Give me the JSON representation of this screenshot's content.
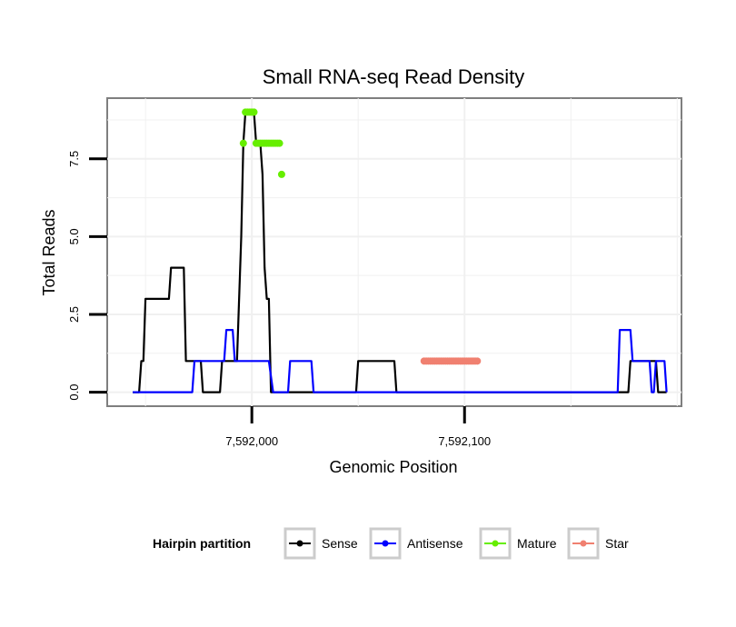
{
  "chart_data": {
    "type": "line",
    "title": "Small RNA-seq Read Density",
    "xlabel": "Genomic Position",
    "ylabel": "Total Reads",
    "xlim": [
      7591932,
      7592202
    ],
    "ylim": [
      -0.45,
      9.45
    ],
    "x_ticks": [
      {
        "value": 7592000,
        "label": "7,592,000"
      },
      {
        "value": 7592100,
        "label": "7,592,100"
      }
    ],
    "y_ticks": [
      {
        "value": 0,
        "label": "0.0"
      },
      {
        "value": 2.5,
        "label": "2.5"
      },
      {
        "value": 5,
        "label": "5.0"
      },
      {
        "value": 7.5,
        "label": "7.5"
      }
    ],
    "grid": true,
    "series": [
      {
        "name": "Sense",
        "color": "#000000",
        "style": "line",
        "points": [
          [
            7591944,
            0
          ],
          [
            7591947,
            0
          ],
          [
            7591948,
            1
          ],
          [
            7591949,
            1
          ],
          [
            7591950,
            3
          ],
          [
            7591961,
            3
          ],
          [
            7591962,
            4
          ],
          [
            7591968,
            4
          ],
          [
            7591969,
            1
          ],
          [
            7591976,
            1
          ],
          [
            7591977,
            0
          ],
          [
            7591985,
            0
          ],
          [
            7591986,
            1
          ],
          [
            7591993,
            1
          ],
          [
            7591995,
            5
          ],
          [
            7591996,
            8
          ],
          [
            7591997,
            9
          ],
          [
            7592001,
            9
          ],
          [
            7592002,
            8
          ],
          [
            7592004,
            8
          ],
          [
            7592005,
            7
          ],
          [
            7592006,
            4
          ],
          [
            7592007,
            3
          ],
          [
            7592008,
            3
          ],
          [
            7592009,
            0
          ],
          [
            7592049,
            0
          ],
          [
            7592050,
            1
          ],
          [
            7592067,
            1
          ],
          [
            7592068,
            0
          ],
          [
            7592177,
            0
          ],
          [
            7592178,
            1
          ],
          [
            7592190,
            1
          ],
          [
            7592191,
            0
          ],
          [
            7592195,
            0
          ]
        ]
      },
      {
        "name": "Antisense",
        "color": "#0000ff",
        "style": "line",
        "points": [
          [
            7591944,
            0
          ],
          [
            7591972,
            0
          ],
          [
            7591973,
            1
          ],
          [
            7591987,
            1
          ],
          [
            7591988,
            2
          ],
          [
            7591991,
            2
          ],
          [
            7591992,
            1
          ],
          [
            7591996,
            1
          ],
          [
            7592000,
            1
          ],
          [
            7592001,
            1
          ],
          [
            7592008,
            1
          ],
          [
            7592010,
            0
          ],
          [
            7592017,
            0
          ],
          [
            7592018,
            1
          ],
          [
            7592028,
            1
          ],
          [
            7592029,
            0
          ],
          [
            7592172,
            0
          ],
          [
            7592173,
            2
          ],
          [
            7592178,
            2
          ],
          [
            7592179,
            1
          ],
          [
            7592187,
            1
          ],
          [
            7592188,
            0
          ],
          [
            7592189,
            0
          ],
          [
            7592190,
            1
          ],
          [
            7592194,
            1
          ],
          [
            7592195,
            0
          ]
        ]
      },
      {
        "name": "Mature",
        "color": "#66ee00",
        "style": "points",
        "points": [
          [
            7591996,
            8
          ],
          [
            7591997,
            9
          ],
          [
            7591998,
            9
          ],
          [
            7591999,
            9
          ],
          [
            7592000,
            9
          ],
          [
            7592001,
            9
          ],
          [
            7592002,
            8
          ],
          [
            7592003,
            8
          ],
          [
            7592004,
            8
          ],
          [
            7592005,
            8
          ],
          [
            7592006,
            8
          ],
          [
            7592007,
            8
          ],
          [
            7592008,
            8
          ],
          [
            7592009,
            8
          ],
          [
            7592010,
            8
          ],
          [
            7592011,
            8
          ],
          [
            7592012,
            8
          ],
          [
            7592013,
            8
          ],
          [
            7592014,
            7
          ]
        ]
      },
      {
        "name": "Star",
        "color": "#f08070",
        "style": "points",
        "points": [
          [
            7592081,
            1
          ],
          [
            7592082,
            1
          ],
          [
            7592083,
            1
          ],
          [
            7592084,
            1
          ],
          [
            7592085,
            1
          ],
          [
            7592086,
            1
          ],
          [
            7592087,
            1
          ],
          [
            7592088,
            1
          ],
          [
            7592089,
            1
          ],
          [
            7592090,
            1
          ],
          [
            7592091,
            1
          ],
          [
            7592092,
            1
          ],
          [
            7592093,
            1
          ],
          [
            7592094,
            1
          ],
          [
            7592095,
            1
          ],
          [
            7592096,
            1
          ],
          [
            7592097,
            1
          ],
          [
            7592098,
            1
          ],
          [
            7592099,
            1
          ],
          [
            7592100,
            1
          ],
          [
            7592101,
            1
          ],
          [
            7592102,
            1
          ],
          [
            7592103,
            1
          ],
          [
            7592104,
            1
          ],
          [
            7592105,
            1
          ],
          [
            7592106,
            1
          ]
        ]
      }
    ],
    "legend": {
      "title": "Hairpin partition",
      "placement": "bottom",
      "entries": [
        {
          "label": "Sense",
          "color": "#000000"
        },
        {
          "label": "Antisense",
          "color": "#0000ff"
        },
        {
          "label": "Mature",
          "color": "#66ee00"
        },
        {
          "label": "Star",
          "color": "#f08070"
        }
      ]
    }
  }
}
